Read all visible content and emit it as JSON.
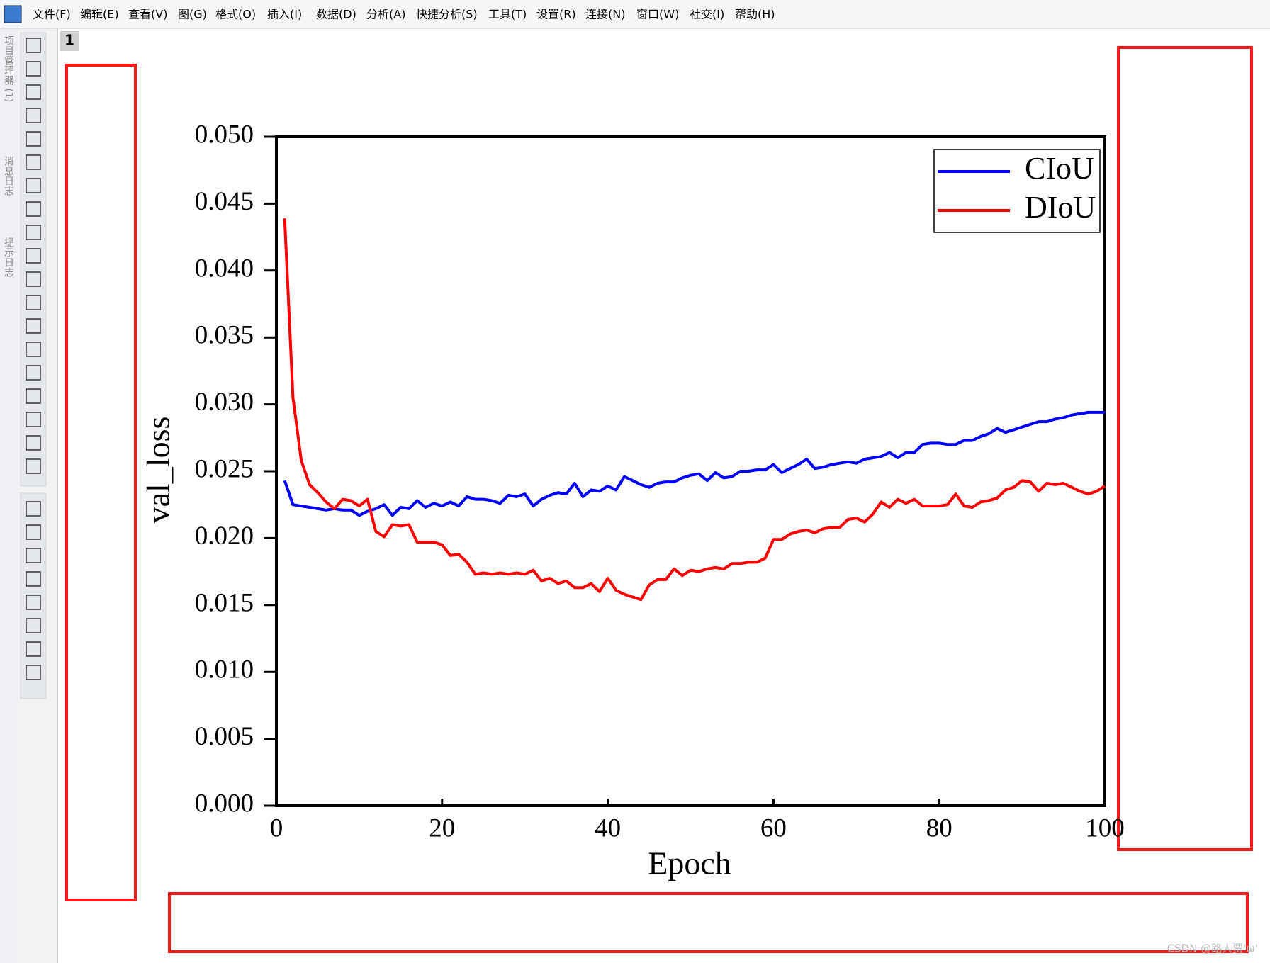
{
  "menu": [
    "文件(F)",
    "编辑(E)",
    "查看(V)",
    "图(G)",
    "格式(O)",
    "插入(I)",
    "数据(D)",
    "分析(A)",
    "快捷分析(S)",
    "工具(T)",
    "设置(R)",
    "连接(N)",
    "窗口(W)",
    "社交(I)",
    "帮助(H)"
  ],
  "side_tabs": [
    "项目管理器 (1)",
    "消息日志",
    "提示日志"
  ],
  "window_title": "1",
  "watermark": "CSDN @路人贾'ω'",
  "chart_data": {
    "type": "line",
    "xlabel": "Epoch",
    "ylabel": "val_loss",
    "x": [
      1,
      2,
      3,
      4,
      5,
      6,
      7,
      8,
      9,
      10,
      11,
      12,
      13,
      14,
      15,
      16,
      17,
      18,
      19,
      20,
      21,
      22,
      23,
      24,
      25,
      26,
      27,
      28,
      29,
      30,
      31,
      32,
      33,
      34,
      35,
      36,
      37,
      38,
      39,
      40,
      41,
      42,
      43,
      44,
      45,
      46,
      47,
      48,
      49,
      50,
      51,
      52,
      53,
      54,
      55,
      56,
      57,
      58,
      59,
      60,
      61,
      62,
      63,
      64,
      65,
      66,
      67,
      68,
      69,
      70,
      71,
      72,
      73,
      74,
      75,
      76,
      77,
      78,
      79,
      80,
      81,
      82,
      83,
      84,
      85,
      86,
      87,
      88,
      89,
      90,
      91,
      92,
      93,
      94,
      95,
      96,
      97,
      98,
      99,
      100
    ],
    "series": [
      {
        "name": "CIoU",
        "color": "#0000ff",
        "values": [
          0.0243,
          0.0225,
          0.0224,
          0.0223,
          0.0222,
          0.0221,
          0.0222,
          0.0221,
          0.0221,
          0.0217,
          0.022,
          0.0222,
          0.0225,
          0.0217,
          0.0223,
          0.0222,
          0.0228,
          0.0223,
          0.0226,
          0.0224,
          0.0227,
          0.0224,
          0.0231,
          0.0229,
          0.0229,
          0.0228,
          0.0226,
          0.0232,
          0.0231,
          0.0233,
          0.0224,
          0.0229,
          0.0232,
          0.0234,
          0.0233,
          0.0241,
          0.0231,
          0.0236,
          0.0235,
          0.0239,
          0.0236,
          0.0246,
          0.0243,
          0.024,
          0.0238,
          0.0241,
          0.0242,
          0.0242,
          0.0245,
          0.0247,
          0.0248,
          0.0243,
          0.0249,
          0.0245,
          0.0246,
          0.025,
          0.025,
          0.0251,
          0.0251,
          0.0255,
          0.0249,
          0.0252,
          0.0255,
          0.0259,
          0.0252,
          0.0253,
          0.0255,
          0.0256,
          0.0257,
          0.0256,
          0.0259,
          0.026,
          0.0261,
          0.0264,
          0.026,
          0.0264,
          0.0264,
          0.027,
          0.0271,
          0.0271,
          0.027,
          0.027,
          0.0273,
          0.0273,
          0.0276,
          0.0278,
          0.0282,
          0.0279,
          0.0281,
          0.0283,
          0.0285,
          0.0287,
          0.0287,
          0.0289,
          0.029,
          0.0292,
          0.0293,
          0.0294,
          0.0294,
          0.0294
        ]
      },
      {
        "name": "DIoU",
        "color": "#ff0000",
        "values": [
          0.0439,
          0.0305,
          0.0258,
          0.024,
          0.0234,
          0.0227,
          0.0222,
          0.0229,
          0.0228,
          0.0224,
          0.0229,
          0.0205,
          0.0201,
          0.021,
          0.0209,
          0.021,
          0.0197,
          0.0197,
          0.0197,
          0.0195,
          0.0187,
          0.0188,
          0.0182,
          0.0173,
          0.0174,
          0.0173,
          0.0174,
          0.0173,
          0.0174,
          0.0173,
          0.0176,
          0.0168,
          0.017,
          0.0166,
          0.0168,
          0.0163,
          0.0163,
          0.0166,
          0.016,
          0.017,
          0.0161,
          0.0158,
          0.0156,
          0.0154,
          0.0165,
          0.0169,
          0.0169,
          0.0177,
          0.0172,
          0.0176,
          0.0175,
          0.0177,
          0.0178,
          0.0177,
          0.0181,
          0.0181,
          0.0182,
          0.0182,
          0.0185,
          0.0199,
          0.0199,
          0.0203,
          0.0205,
          0.0206,
          0.0204,
          0.0207,
          0.0208,
          0.0208,
          0.0214,
          0.0215,
          0.0212,
          0.0218,
          0.0227,
          0.0223,
          0.0229,
          0.0226,
          0.0229,
          0.0224,
          0.0224,
          0.0224,
          0.0225,
          0.0233,
          0.0224,
          0.0223,
          0.0227,
          0.0228,
          0.023,
          0.0236,
          0.0238,
          0.0243,
          0.0242,
          0.0235,
          0.0241,
          0.024,
          0.0241,
          0.0238,
          0.0235,
          0.0233,
          0.0235,
          0.0239
        ]
      }
    ],
    "xlim": [
      0,
      100
    ],
    "xticks": [
      0,
      20,
      40,
      60,
      80,
      100
    ],
    "ylim": [
      0,
      0.05
    ],
    "yticks": [
      {
        "value": 0,
        "label": "0.000"
      },
      {
        "value": 0.005,
        "label": "0.005"
      },
      {
        "value": 0.01,
        "label": "0.010"
      },
      {
        "value": 0.015,
        "label": "0.015"
      },
      {
        "value": 0.02,
        "label": "0.020"
      },
      {
        "value": 0.025,
        "label": "0.025"
      },
      {
        "value": 0.03,
        "label": "0.030"
      },
      {
        "value": 0.035,
        "label": "0.035"
      },
      {
        "value": 0.04,
        "label": "0.040"
      },
      {
        "value": 0.045,
        "label": "0.045"
      },
      {
        "value": 0.05,
        "label": "0.050"
      }
    ],
    "legend": "upper right",
    "grid": false
  }
}
